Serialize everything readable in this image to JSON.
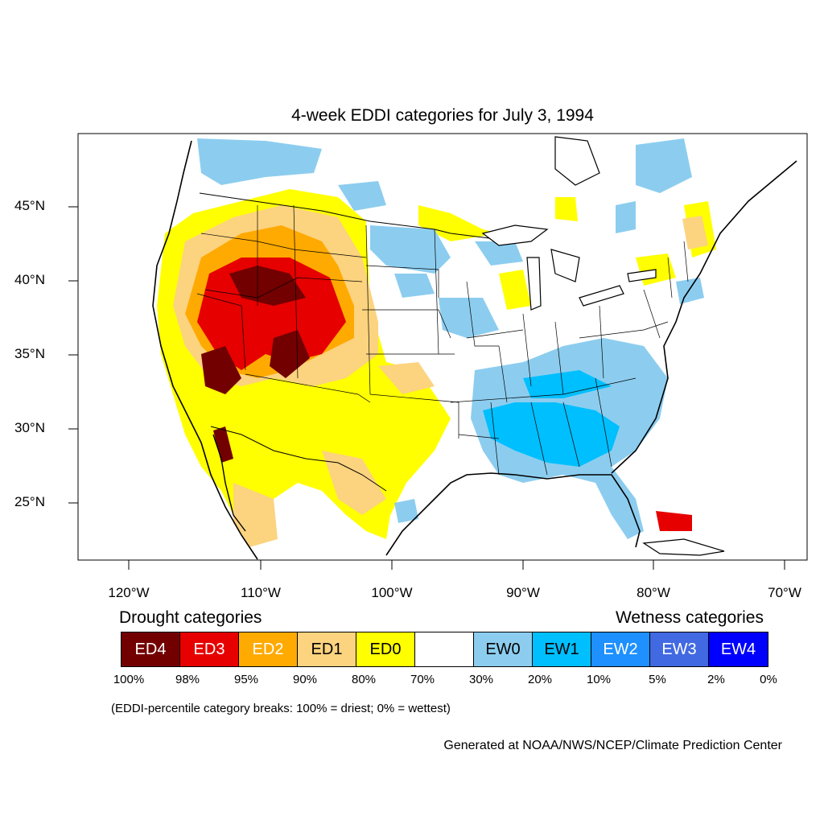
{
  "title": "4-week EDDI categories for July 3, 1994",
  "lat_labels": [
    "45°N",
    "40°N",
    "35°N",
    "30°N",
    "25°N"
  ],
  "lon_labels": [
    "120°W",
    "110°W",
    "100°W",
    "90°W",
    "80°W",
    "70°W"
  ],
  "legend": {
    "drought_heading": "Drought categories",
    "wetness_heading": "Wetness categories",
    "categories": [
      {
        "label": "ED4",
        "color": "#730000",
        "text_color": "#ffffff"
      },
      {
        "label": "ED3",
        "color": "#e60000",
        "text_color": "#ffffff"
      },
      {
        "label": "ED2",
        "color": "#ffaa00",
        "text_color": "#ffffff"
      },
      {
        "label": "ED1",
        "color": "#fcd37f",
        "text_color": "#000000"
      },
      {
        "label": "ED0",
        "color": "#ffff00",
        "text_color": "#000000"
      },
      {
        "label": "",
        "color": "#ffffff",
        "text_color": "#000000"
      },
      {
        "label": "EW0",
        "color": "#8ccdef",
        "text_color": "#000000"
      },
      {
        "label": "EW1",
        "color": "#00bfff",
        "text_color": "#000000"
      },
      {
        "label": "EW2",
        "color": "#1e90ff",
        "text_color": "#ffffff"
      },
      {
        "label": "EW3",
        "color": "#4169e1",
        "text_color": "#ffffff"
      },
      {
        "label": "EW4",
        "color": "#0000ff",
        "text_color": "#ffffff"
      }
    ],
    "breaks": [
      "100%",
      "98%",
      "95%",
      "90%",
      "80%",
      "70%",
      "30%",
      "20%",
      "10%",
      "5%",
      "2%",
      "0%"
    ]
  },
  "breaks_note": "(EDDI-percentile category breaks: 100% = driest; 0% = wettest)",
  "credit": "Generated at NOAA/NWS/NCEP/Climate Prediction Center"
}
